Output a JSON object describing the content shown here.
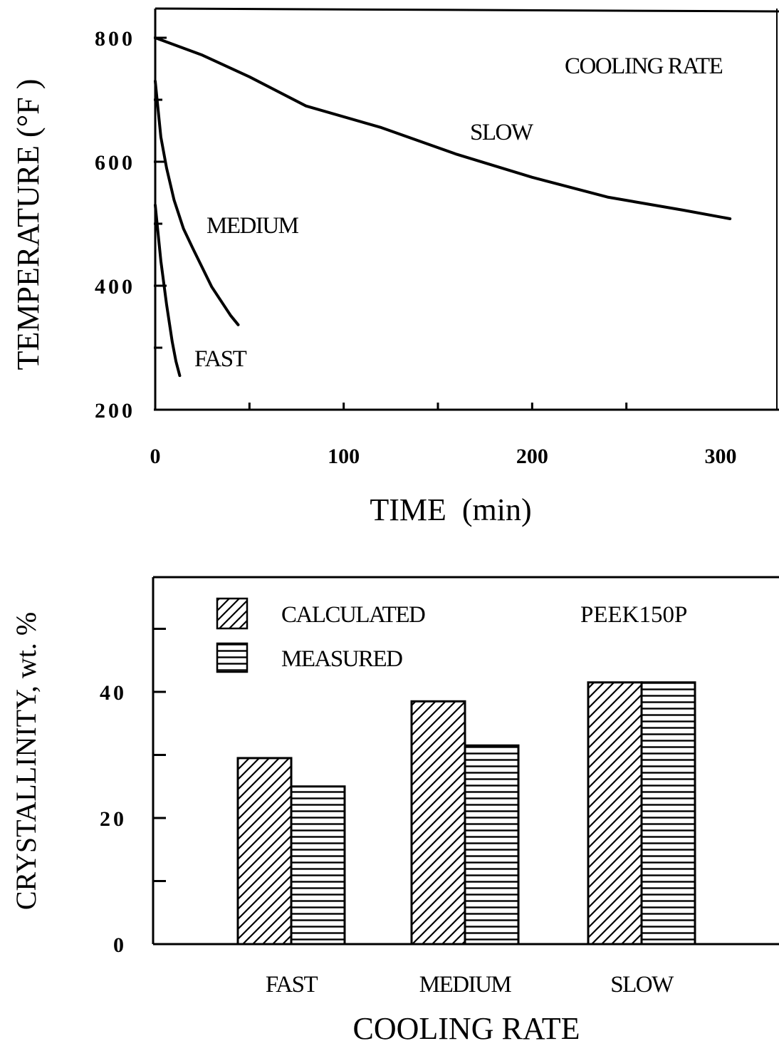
{
  "chart_data": [
    {
      "type": "line",
      "xlabel": "TIME  (min)",
      "ylabel": "TEMPERATURE (°F )",
      "xlim": [
        0,
        330
      ],
      "ylim": [
        200,
        840
      ],
      "xticks": [
        "0",
        "100",
        "200",
        "300"
      ],
      "yticks": [
        "200",
        "400",
        "600",
        "800"
      ],
      "legend_title": "COOLING RATE",
      "series": [
        {
          "name": "SLOW",
          "x": [
            0,
            25,
            50,
            80,
            120,
            160,
            200,
            240,
            280,
            305
          ],
          "y": [
            800,
            772,
            737,
            690,
            655,
            612,
            575,
            543,
            522,
            508
          ]
        },
        {
          "name": "MEDIUM",
          "x": [
            0,
            3,
            6,
            10,
            15,
            20,
            30,
            40,
            44
          ],
          "y": [
            730,
            640,
            590,
            538,
            492,
            460,
            398,
            352,
            337
          ]
        },
        {
          "name": "FAST",
          "x": [
            0,
            3,
            6,
            9,
            11,
            13
          ],
          "y": [
            530,
            440,
            370,
            310,
            278,
            255
          ]
        }
      ]
    },
    {
      "type": "bar",
      "xlabel": "COOLING RATE",
      "ylabel": "CRYSTALLINITY, wt. %",
      "ylim": [
        0,
        58
      ],
      "yticks": [
        "0",
        "20",
        "40"
      ],
      "annotation": "PEEK150P",
      "categories": [
        "FAST",
        "MEDIUM",
        "SLOW"
      ],
      "series": [
        {
          "name": "CALCULATED",
          "values": [
            29.5,
            38.5,
            41.5
          ],
          "pattern": "diagonal-hatch"
        },
        {
          "name": "MEASURED",
          "values": [
            25,
            31.5,
            41.5
          ],
          "pattern": "horizontal-hatch"
        }
      ]
    }
  ]
}
